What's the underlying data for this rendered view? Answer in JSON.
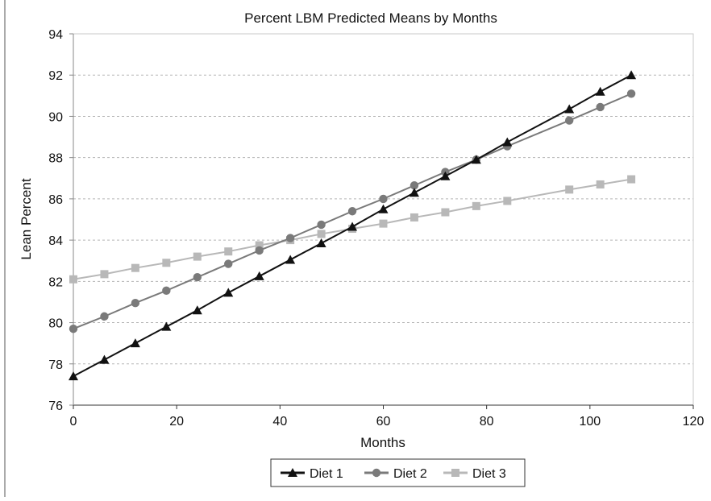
{
  "chart_data": {
    "type": "line",
    "title": "Percent LBM Predicted Means by Months",
    "xlabel": "Months",
    "ylabel": "Lean Percent",
    "xlim": [
      0,
      120
    ],
    "ylim": [
      76,
      94
    ],
    "xticks": [
      0,
      20,
      40,
      60,
      80,
      100,
      120
    ],
    "yticks": [
      76,
      78,
      80,
      82,
      84,
      86,
      88,
      90,
      92,
      94
    ],
    "grid": "horizontal dashed",
    "legend_position": "bottom",
    "series": [
      {
        "name": "Diet 1",
        "marker": "triangle",
        "color": "#111111",
        "x": [
          0,
          6,
          12,
          18,
          24,
          30,
          36,
          42,
          48,
          54,
          60,
          66,
          72,
          78,
          84,
          96,
          102,
          108
        ],
        "y": [
          77.4,
          78.2,
          79.0,
          79.8,
          80.6,
          81.45,
          82.25,
          83.05,
          83.85,
          84.65,
          85.5,
          86.3,
          87.1,
          87.9,
          88.75,
          90.35,
          91.2,
          92.0
        ]
      },
      {
        "name": "Diet 2",
        "marker": "circle",
        "color": "#7a7a7a",
        "x": [
          0,
          6,
          12,
          18,
          24,
          30,
          36,
          42,
          48,
          54,
          60,
          66,
          72,
          78,
          84,
          96,
          102,
          108
        ],
        "y": [
          79.7,
          80.3,
          80.95,
          81.55,
          82.2,
          82.85,
          83.5,
          84.1,
          84.75,
          85.4,
          86.0,
          86.65,
          87.3,
          87.9,
          88.55,
          89.8,
          90.45,
          91.1
        ]
      },
      {
        "name": "Diet 3",
        "marker": "square",
        "color": "#b8b8b8",
        "x": [
          0,
          6,
          12,
          18,
          24,
          30,
          36,
          42,
          48,
          54,
          60,
          66,
          72,
          78,
          84,
          96,
          102,
          108
        ],
        "y": [
          82.1,
          82.35,
          82.65,
          82.9,
          83.2,
          83.45,
          83.75,
          84.0,
          84.3,
          84.55,
          84.8,
          85.1,
          85.35,
          85.65,
          85.9,
          86.45,
          86.7,
          86.95
        ]
      }
    ]
  }
}
